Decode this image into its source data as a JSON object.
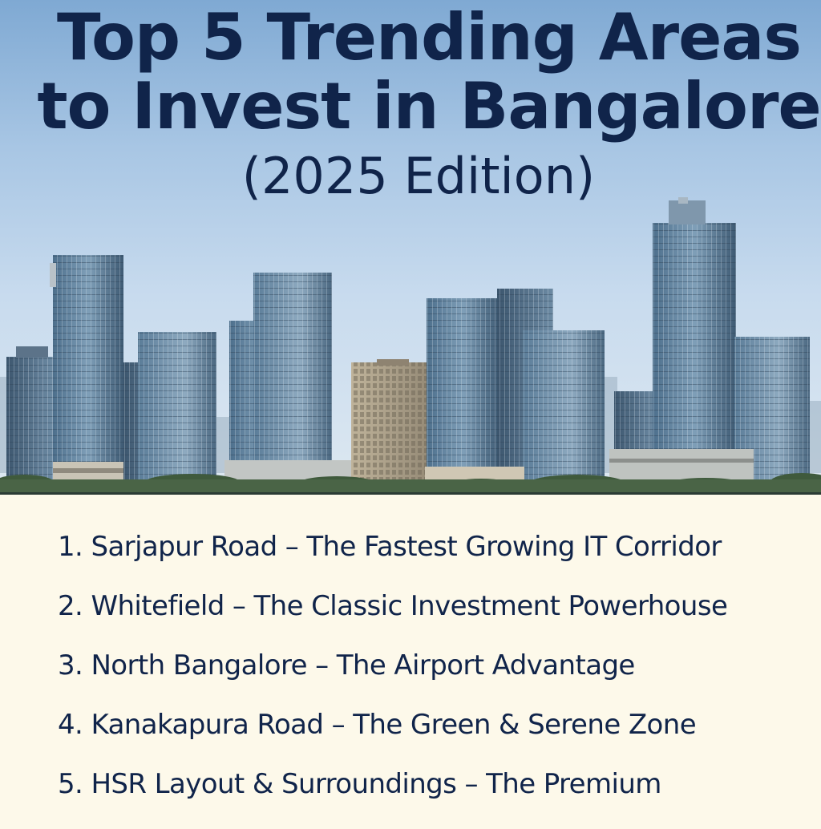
{
  "header": {
    "title_line1": "Top 5 Trending Areas",
    "title_line2": "to Invest in Bangalore",
    "edition": "(2025 Edition)"
  },
  "hero": {
    "scene": "city-skyline-illustration",
    "sky_color": "#a8c6e4",
    "tree_color": "#3f5a3c"
  },
  "areas": [
    {
      "number": "1.",
      "text": "Sarjapur Road – The Fastest Growing IT Corridor"
    },
    {
      "number": "2.",
      "text": "Whitefield – The Classic Investment Powerhouse"
    },
    {
      "number": "3.",
      "text": "North Bangalore – The Airport Advantage"
    },
    {
      "number": "4.",
      "text": "Kanakapura Road – The Green & Serene Zone"
    },
    {
      "number": "5.",
      "text": "HSR Layout & Surroundings – The Premium"
    }
  ],
  "colors": {
    "title": "#10244a",
    "list_background": "#fdf9ea",
    "list_text": "#10244a"
  }
}
